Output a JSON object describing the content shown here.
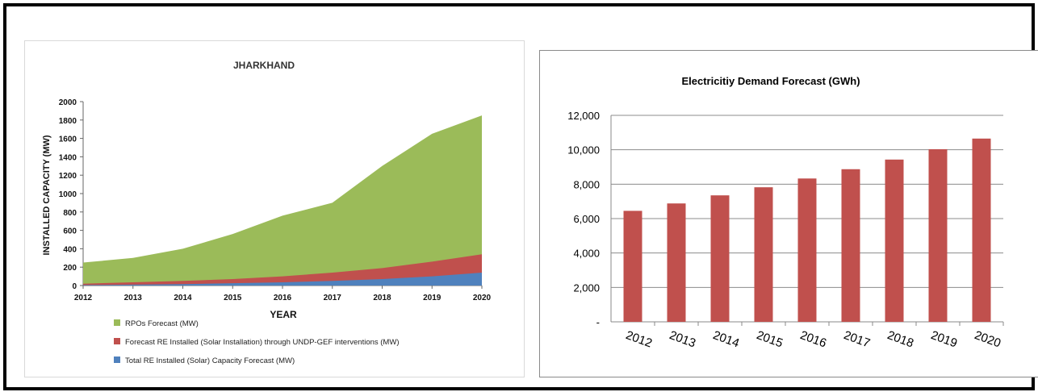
{
  "chart_data": [
    {
      "type": "area",
      "title": "JHARKHAND",
      "xlabel": "YEAR",
      "ylabel": "INSTALLED CAPACITY (MW)",
      "x": [
        "2012",
        "2013",
        "2014",
        "2015",
        "2016",
        "2017",
        "2018",
        "2019",
        "2020"
      ],
      "yticks": [
        "0",
        "200",
        "400",
        "600",
        "800",
        "1000",
        "1200",
        "1400",
        "1600",
        "1800",
        "2000"
      ],
      "ylim": [
        0,
        2000
      ],
      "stacked": false,
      "series": [
        {
          "name": "RPOs Forecast (MW)",
          "color": "#9bbb59",
          "values": [
            250,
            300,
            400,
            560,
            760,
            900,
            1300,
            1650,
            1850
          ]
        },
        {
          "name": "Forecast RE Installed (Solar Installation) through UNDP-GEF interventions  (MW)",
          "color": "#c0504d",
          "values": [
            20,
            35,
            50,
            70,
            100,
            140,
            190,
            260,
            340
          ]
        },
        {
          "name": "Total RE Installed (Solar) Capacity Forecast (MW)",
          "color": "#4f81bd",
          "values": [
            5,
            10,
            15,
            25,
            35,
            50,
            70,
            100,
            140
          ]
        }
      ],
      "legend_position": "bottom"
    },
    {
      "type": "bar",
      "title": "Electricitiy Demand Forecast (GWh)",
      "categories": [
        "2012",
        "2013",
        "2014",
        "2015",
        "2016",
        "2017",
        "2018",
        "2019",
        "2020"
      ],
      "values": [
        6450,
        6880,
        7350,
        7820,
        8330,
        8870,
        9430,
        10030,
        10650
      ],
      "yticks": [
        "-",
        "2,000",
        "4,000",
        "6,000",
        "8,000",
        "10,000",
        "12,000"
      ],
      "ylim": [
        0,
        12000
      ],
      "bar_color": "#c0504d",
      "grid": true
    }
  ]
}
